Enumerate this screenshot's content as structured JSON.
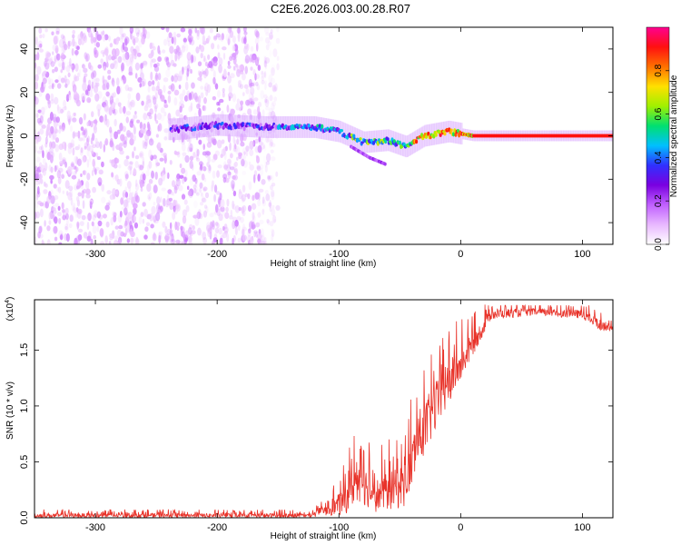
{
  "page": {
    "title": "C2E6.2026.003.00.28.R07"
  },
  "chart_data": [
    {
      "type": "heatmap",
      "xlabel": "Height of straight line (km)",
      "ylabel": "Frequency (Hz)",
      "xlim": [
        -350,
        125
      ],
      "ylim": [
        -50,
        50
      ],
      "xticks": [
        -300,
        -200,
        -100,
        0,
        100
      ],
      "yticks": [
        -40,
        -20,
        0,
        20,
        40
      ],
      "colorbar": {
        "label": "Normalized spectral amplitude",
        "range": [
          0,
          1
        ],
        "ticks": [
          "0.0",
          "0.2",
          "0.4",
          "0.6",
          "0.8"
        ],
        "colors": [
          "#ffffff",
          "#e8b8ff",
          "#c060ff",
          "#7a00e0",
          "#3030ff",
          "#00c0ff",
          "#00e070",
          "#a0f000",
          "#ffe000",
          "#ff7000",
          "#ff1010",
          "#ff0090"
        ]
      },
      "features": {
        "noise_region_x": [
          -350,
          -150
        ],
        "signal_trace": [
          {
            "x": -235,
            "y": 3
          },
          {
            "x": -200,
            "y": 5
          },
          {
            "x": -160,
            "y": 4
          },
          {
            "x": -120,
            "y": 4
          },
          {
            "x": -100,
            "y": 2
          },
          {
            "x": -80,
            "y": -3
          },
          {
            "x": -60,
            "y": -2
          },
          {
            "x": -45,
            "y": -5
          },
          {
            "x": -30,
            "y": 0
          },
          {
            "x": -10,
            "y": 2
          },
          {
            "x": 10,
            "y": 0
          },
          {
            "x": 125,
            "y": 0
          }
        ],
        "branch_trace": [
          {
            "x": -90,
            "y": -5
          },
          {
            "x": -75,
            "y": -10
          },
          {
            "x": -62,
            "y": -13
          }
        ]
      }
    },
    {
      "type": "line",
      "xlabel": "Height of straight line (km)",
      "ylabel": "SNR (10 * v/v)",
      "multiplier": "(x10",
      "multiplier_exp": "4",
      "xlim": [
        -350,
        125
      ],
      "ylim": [
        0,
        1.95
      ],
      "xticks": [
        -300,
        -200,
        -100,
        0,
        100
      ],
      "yticks": [
        "0.0",
        "0.5",
        "1.0",
        "1.5"
      ],
      "line_color": "#e8332a",
      "envelope": [
        {
          "x": -350,
          "base": 0.02,
          "amp": 0.04
        },
        {
          "x": -125,
          "base": 0.02,
          "amp": 0.04
        },
        {
          "x": -110,
          "base": 0.06,
          "amp": 0.08
        },
        {
          "x": -95,
          "base": 0.15,
          "amp": 0.25
        },
        {
          "x": -85,
          "base": 0.35,
          "amp": 0.4
        },
        {
          "x": -70,
          "base": 0.2,
          "amp": 0.3
        },
        {
          "x": -55,
          "base": 0.25,
          "amp": 0.35
        },
        {
          "x": -45,
          "base": 0.3,
          "amp": 0.4
        },
        {
          "x": -35,
          "base": 0.7,
          "amp": 0.5
        },
        {
          "x": -20,
          "base": 1.0,
          "amp": 0.45
        },
        {
          "x": -10,
          "base": 1.2,
          "amp": 0.4
        },
        {
          "x": 10,
          "base": 1.55,
          "amp": 0.2
        },
        {
          "x": 25,
          "base": 1.82,
          "amp": 0.1
        },
        {
          "x": 60,
          "base": 1.84,
          "amp": 0.06
        },
        {
          "x": 100,
          "base": 1.82,
          "amp": 0.08
        },
        {
          "x": 115,
          "base": 1.72,
          "amp": 0.1
        },
        {
          "x": 125,
          "base": 1.7,
          "amp": 0.05
        }
      ]
    }
  ]
}
